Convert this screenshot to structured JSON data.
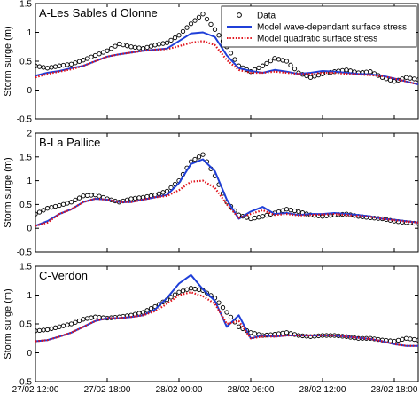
{
  "chart_data": [
    {
      "type": "line",
      "title": "A-Les Sables d Olonne",
      "ylabel": "Storm surge (m)",
      "xlabel": "",
      "ylim": [
        -0.5,
        1.5
      ],
      "yticks": [
        "-0.5",
        "0",
        "0.5",
        "1",
        "1.5"
      ],
      "xlim": [
        0,
        32
      ],
      "grid": false,
      "legend": {
        "position": "top-right",
        "entries": [
          "Data",
          "Model wave-dependant surface stress",
          "Model quadratic surface stress"
        ]
      },
      "series": [
        {
          "name": "Data",
          "style": "markers",
          "color": "#000000",
          "x": [
            0,
            1,
            2,
            3,
            4,
            5,
            6,
            7,
            8,
            9,
            10,
            11,
            12,
            13,
            14,
            15,
            16,
            17,
            18,
            19,
            20,
            21,
            22,
            23,
            24,
            25,
            26,
            27,
            28,
            29,
            30,
            31,
            32
          ],
          "values": [
            0.42,
            0.38,
            0.42,
            0.45,
            0.52,
            0.6,
            0.68,
            0.8,
            0.75,
            0.72,
            0.78,
            0.82,
            0.95,
            1.15,
            1.32,
            1.05,
            0.75,
            0.42,
            0.32,
            0.42,
            0.55,
            0.5,
            0.3,
            0.22,
            0.28,
            0.32,
            0.35,
            0.3,
            0.32,
            0.22,
            0.15,
            0.22,
            0.18
          ]
        },
        {
          "name": "Model wave-dependant surface stress",
          "style": "solid",
          "color": "#1f3fd8",
          "x": [
            0,
            1,
            2,
            3,
            4,
            5,
            6,
            7,
            8,
            9,
            10,
            11,
            12,
            13,
            14,
            15,
            16,
            17,
            18,
            19,
            20,
            21,
            22,
            23,
            24,
            25,
            26,
            27,
            28,
            29,
            30,
            31,
            32
          ],
          "values": [
            0.25,
            0.3,
            0.33,
            0.38,
            0.42,
            0.5,
            0.58,
            0.62,
            0.65,
            0.68,
            0.7,
            0.72,
            0.85,
            0.98,
            1.0,
            0.92,
            0.6,
            0.38,
            0.33,
            0.3,
            0.35,
            0.32,
            0.28,
            0.3,
            0.33,
            0.32,
            0.3,
            0.28,
            0.27,
            0.25,
            0.2,
            0.15,
            0.1
          ]
        },
        {
          "name": "Model quadratic surface stress",
          "style": "dotted",
          "color": "#e0121b",
          "x": [
            0,
            1,
            2,
            3,
            4,
            5,
            6,
            7,
            8,
            9,
            10,
            11,
            12,
            13,
            14,
            15,
            16,
            17,
            18,
            19,
            20,
            21,
            22,
            23,
            24,
            25,
            26,
            27,
            28,
            29,
            30,
            31,
            32
          ],
          "values": [
            0.22,
            0.28,
            0.32,
            0.36,
            0.42,
            0.5,
            0.58,
            0.62,
            0.65,
            0.68,
            0.7,
            0.71,
            0.76,
            0.82,
            0.85,
            0.78,
            0.52,
            0.35,
            0.3,
            0.3,
            0.32,
            0.3,
            0.28,
            0.28,
            0.3,
            0.3,
            0.28,
            0.27,
            0.26,
            0.24,
            0.2,
            0.15,
            0.1
          ]
        }
      ]
    },
    {
      "type": "line",
      "title": "B-La Pallice",
      "ylabel": "Storm surge (m)",
      "xlabel": "",
      "ylim": [
        -0.5,
        2
      ],
      "yticks": [
        "-0.5",
        "0",
        "0.5",
        "1",
        "1.5",
        "2"
      ],
      "xlim": [
        0,
        32
      ],
      "grid": false,
      "series": [
        {
          "name": "Data",
          "style": "markers",
          "color": "#000000",
          "x": [
            0,
            1,
            2,
            3,
            4,
            5,
            6,
            7,
            8,
            9,
            10,
            11,
            12,
            13,
            14,
            15,
            16,
            17,
            18,
            19,
            20,
            21,
            22,
            23,
            24,
            25,
            26,
            27,
            28,
            29,
            30,
            31,
            32
          ],
          "values": [
            0.3,
            0.42,
            0.48,
            0.55,
            0.68,
            0.7,
            0.62,
            0.55,
            0.62,
            0.65,
            0.7,
            0.78,
            1.0,
            1.4,
            1.55,
            1.1,
            0.55,
            0.28,
            0.2,
            0.25,
            0.32,
            0.4,
            0.35,
            0.28,
            0.25,
            0.28,
            0.3,
            0.25,
            0.22,
            0.2,
            0.15,
            0.12,
            0.1
          ]
        },
        {
          "name": "Model wave-dependant surface stress",
          "style": "solid",
          "color": "#1f3fd8",
          "x": [
            0,
            1,
            2,
            3,
            4,
            5,
            6,
            7,
            8,
            9,
            10,
            11,
            12,
            13,
            14,
            15,
            16,
            17,
            18,
            19,
            20,
            21,
            22,
            23,
            24,
            25,
            26,
            27,
            28,
            29,
            30,
            31,
            32
          ],
          "values": [
            0.05,
            0.15,
            0.3,
            0.4,
            0.55,
            0.62,
            0.6,
            0.55,
            0.55,
            0.6,
            0.65,
            0.7,
            0.95,
            1.35,
            1.45,
            1.2,
            0.6,
            0.2,
            0.35,
            0.45,
            0.3,
            0.32,
            0.28,
            0.3,
            0.3,
            0.32,
            0.3,
            0.28,
            0.25,
            0.2,
            0.18,
            0.15,
            0.12
          ]
        },
        {
          "name": "Model quadratic surface stress",
          "style": "dotted",
          "color": "#e0121b",
          "x": [
            0,
            1,
            2,
            3,
            4,
            5,
            6,
            7,
            8,
            9,
            10,
            11,
            12,
            13,
            14,
            15,
            16,
            17,
            18,
            19,
            20,
            21,
            22,
            23,
            24,
            25,
            26,
            27,
            28,
            29,
            30,
            31,
            32
          ],
          "values": [
            0.05,
            0.12,
            0.3,
            0.4,
            0.55,
            0.62,
            0.6,
            0.55,
            0.55,
            0.6,
            0.65,
            0.68,
            0.8,
            0.98,
            1.0,
            0.85,
            0.5,
            0.22,
            0.3,
            0.38,
            0.28,
            0.3,
            0.27,
            0.28,
            0.29,
            0.3,
            0.28,
            0.26,
            0.24,
            0.2,
            0.17,
            0.14,
            0.12
          ]
        }
      ]
    },
    {
      "type": "line",
      "title": "C-Verdon",
      "ylabel": "Storm surge (m)",
      "xlabel": "",
      "ylim": [
        -0.5,
        1.5
      ],
      "yticks": [
        "-0.5",
        "0",
        "0.5",
        "1",
        "1.5"
      ],
      "xlim": [
        0,
        32
      ],
      "xticks": [
        {
          "x": 0,
          "label": "27/02 12:00"
        },
        {
          "x": 6,
          "label": "27/02 18:00"
        },
        {
          "x": 12,
          "label": "28/02 00:00"
        },
        {
          "x": 18,
          "label": "28/02 06:00"
        },
        {
          "x": 24,
          "label": "28/02 12:00"
        },
        {
          "x": 30,
          "label": "28/02 18:00"
        }
      ],
      "grid": false,
      "series": [
        {
          "name": "Data",
          "style": "markers",
          "color": "#000000",
          "x": [
            0,
            1,
            2,
            3,
            4,
            5,
            6,
            7,
            8,
            9,
            10,
            11,
            12,
            13,
            14,
            15,
            16,
            17,
            18,
            19,
            20,
            21,
            22,
            23,
            24,
            25,
            26,
            27,
            28,
            29,
            30,
            31,
            32
          ],
          "values": [
            0.38,
            0.4,
            0.45,
            0.5,
            0.58,
            0.62,
            0.6,
            0.62,
            0.65,
            0.7,
            0.8,
            0.92,
            1.05,
            1.12,
            1.08,
            0.95,
            0.7,
            0.45,
            0.35,
            0.3,
            0.32,
            0.35,
            0.3,
            0.28,
            0.3,
            0.3,
            0.28,
            0.25,
            0.25,
            0.22,
            0.2,
            0.25,
            0.22
          ]
        },
        {
          "name": "Model wave-dependant surface stress",
          "style": "solid",
          "color": "#1f3fd8",
          "x": [
            0,
            1,
            2,
            3,
            4,
            5,
            6,
            7,
            8,
            9,
            10,
            11,
            12,
            13,
            14,
            15,
            16,
            17,
            18,
            19,
            20,
            21,
            22,
            23,
            24,
            25,
            26,
            27,
            28,
            29,
            30,
            31,
            32
          ],
          "values": [
            0.2,
            0.22,
            0.28,
            0.35,
            0.45,
            0.55,
            0.6,
            0.6,
            0.62,
            0.65,
            0.75,
            0.95,
            1.2,
            1.35,
            1.1,
            0.9,
            0.45,
            0.65,
            0.25,
            0.3,
            0.28,
            0.3,
            0.3,
            0.3,
            0.3,
            0.3,
            0.28,
            0.26,
            0.24,
            0.2,
            0.15,
            0.12,
            0.12
          ]
        },
        {
          "name": "Model quadratic surface stress",
          "style": "dotted",
          "color": "#e0121b",
          "x": [
            0,
            1,
            2,
            3,
            4,
            5,
            6,
            7,
            8,
            9,
            10,
            11,
            12,
            13,
            14,
            15,
            16,
            17,
            18,
            19,
            20,
            21,
            22,
            23,
            24,
            25,
            26,
            27,
            28,
            29,
            30,
            31,
            32
          ],
          "values": [
            0.2,
            0.22,
            0.28,
            0.35,
            0.45,
            0.55,
            0.6,
            0.6,
            0.62,
            0.65,
            0.72,
            0.85,
            1.0,
            1.05,
            0.98,
            0.85,
            0.5,
            0.55,
            0.25,
            0.28,
            0.28,
            0.3,
            0.3,
            0.3,
            0.3,
            0.3,
            0.28,
            0.26,
            0.24,
            0.2,
            0.15,
            0.12,
            0.12
          ]
        }
      ]
    }
  ]
}
